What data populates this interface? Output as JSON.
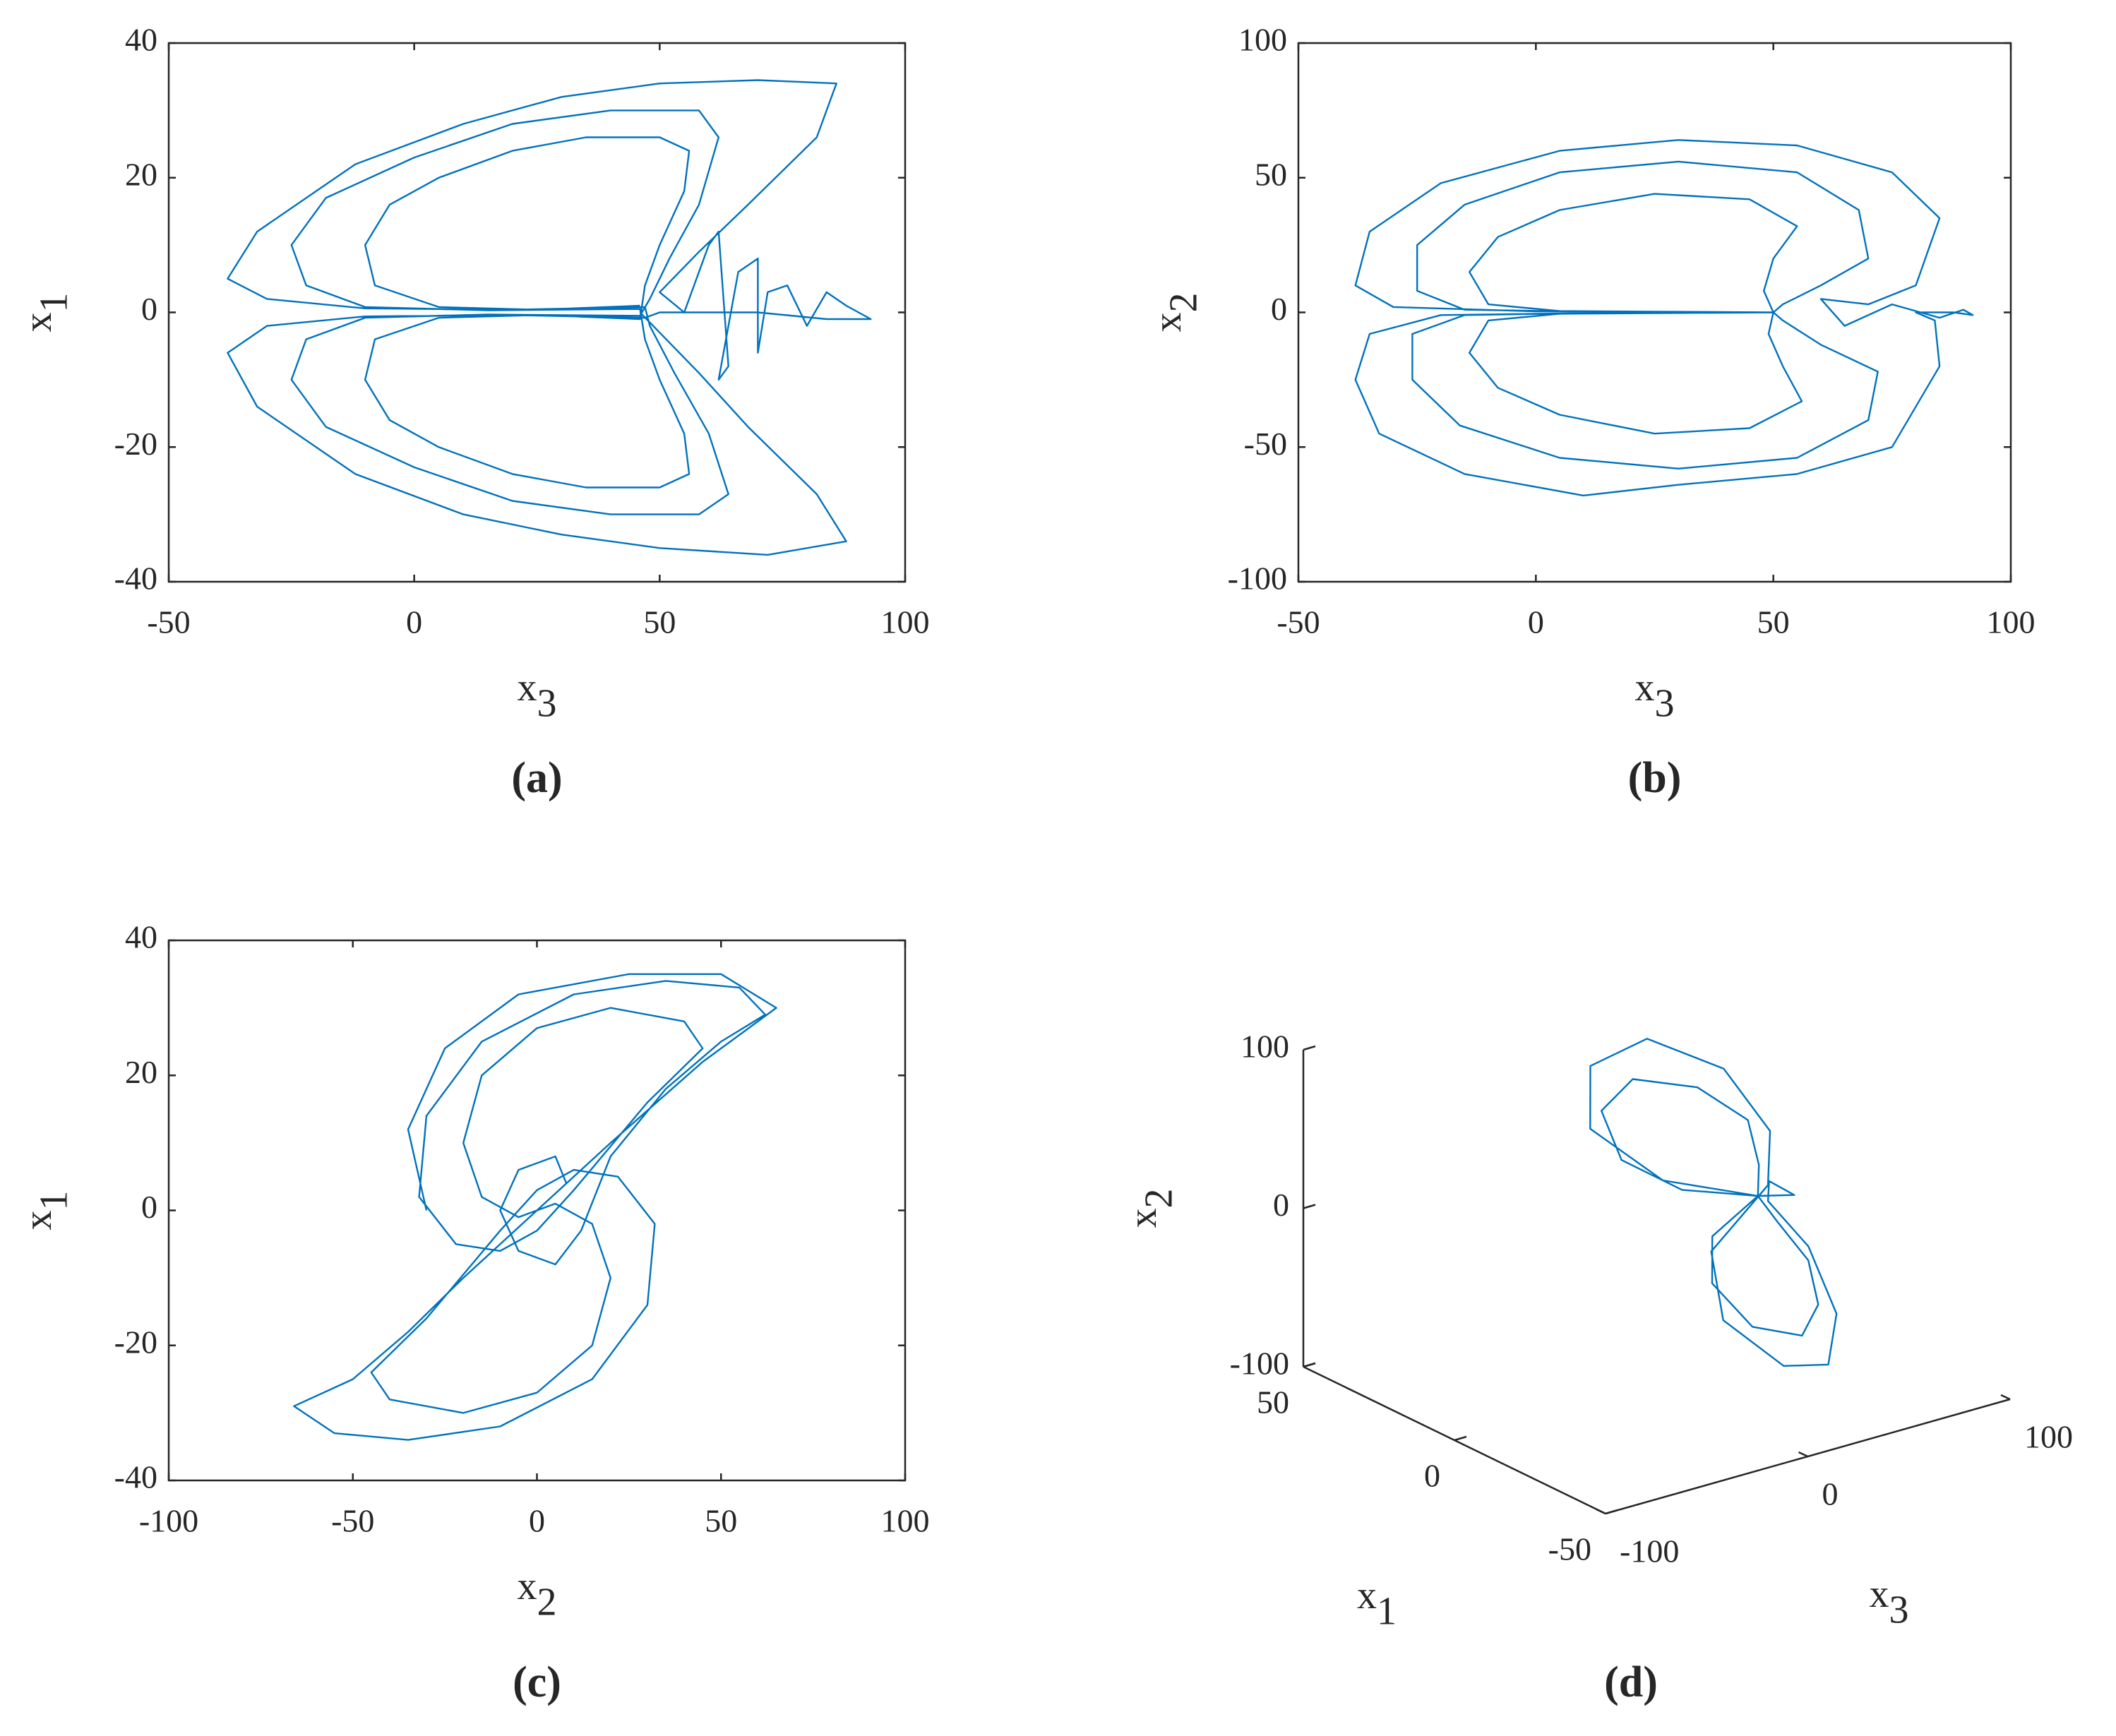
{
  "chart_data": [
    {
      "type": "line",
      "caption": "(a)",
      "xlabel": {
        "text": "x",
        "sub": "3"
      },
      "ylabel": {
        "text": "x",
        "sub": "1"
      },
      "xlim": [
        -50,
        100
      ],
      "xticks": [
        -50,
        0,
        50,
        100
      ],
      "ylim": [
        -40,
        40
      ],
      "yticks": [
        -40,
        -20,
        0,
        20,
        40
      ],
      "x": [
        46,
        25,
        5,
        -8,
        -10,
        -5,
        5,
        20,
        35,
        50,
        56,
        55,
        50,
        47,
        46,
        25,
        5,
        -8,
        -10,
        -5,
        5,
        20,
        35,
        50,
        56,
        55,
        50,
        47,
        46,
        15,
        -10,
        -22,
        -25,
        -18,
        0,
        20,
        40,
        58,
        62,
        58,
        52,
        48,
        46,
        15,
        -10,
        -22,
        -25,
        -18,
        0,
        20,
        40,
        58,
        64,
        60,
        53,
        48,
        47,
        20,
        -10,
        -30,
        -38,
        -32,
        -12,
        10,
        30,
        50,
        70,
        86,
        82,
        68,
        58,
        50,
        55,
        60,
        62,
        64,
        62,
        66,
        70,
        70,
        72,
        76,
        80,
        84,
        88,
        93,
        84,
        70,
        50,
        47,
        20,
        -10,
        -30,
        -38,
        -32,
        -12,
        10,
        30,
        50,
        72,
        88,
        82,
        68,
        58,
        50,
        46
      ],
      "series": [
        {
          "color": "#0072bd",
          "values": [
            1,
            0.4,
            0.8,
            4,
            10,
            16,
            20,
            24,
            26,
            26,
            24,
            18,
            10,
            4,
            -1,
            -0.4,
            -0.8,
            -4,
            -10,
            -16,
            -20,
            -24,
            -26,
            -26,
            -24,
            -18,
            -10,
            -4,
            0.5,
            0.3,
            0.8,
            4,
            10,
            17,
            23,
            28,
            30,
            30,
            26,
            16,
            8,
            2,
            -0.5,
            -0.3,
            -0.8,
            -4,
            -10,
            -17,
            -23,
            -28,
            -30,
            -30,
            -27,
            -18,
            -9,
            -2,
            0.8,
            0.4,
            0.6,
            2,
            5,
            12,
            22,
            28,
            32,
            34,
            34.5,
            34,
            26,
            16,
            9,
            3,
            0,
            10,
            12,
            -8,
            -10,
            6,
            8,
            -6,
            3,
            4,
            -2,
            3,
            1,
            -1,
            -1,
            0,
            0,
            -0.8,
            -0.4,
            -0.6,
            -2,
            -6,
            -14,
            -24,
            -30,
            -33,
            -35,
            -36,
            -34,
            -27,
            -17,
            -9,
            -3,
            0
          ]
        }
      ]
    },
    {
      "type": "line",
      "caption": "(b)",
      "xlabel": {
        "text": "x",
        "sub": "3"
      },
      "ylabel": {
        "text": "x",
        "sub": "2"
      },
      "xlim": [
        -50,
        100
      ],
      "xticks": [
        -50,
        0,
        50,
        100
      ],
      "ylim": [
        -100,
        100
      ],
      "yticks": [
        -100,
        -50,
        0,
        50,
        100
      ],
      "x": [
        50,
        25,
        5,
        -10,
        -14,
        -8,
        5,
        25,
        45,
        55,
        50,
        48,
        50,
        25,
        5,
        -10,
        -14,
        -8,
        5,
        25,
        45,
        56,
        52,
        49,
        50,
        10,
        -15,
        -25,
        -25,
        -15,
        5,
        30,
        55,
        68,
        70,
        60,
        52,
        50,
        10,
        -15,
        -26,
        -26,
        -16,
        5,
        30,
        55,
        70,
        72,
        60,
        52,
        50,
        0,
        -30,
        -38,
        -35,
        -20,
        5,
        30,
        55,
        75,
        85,
        80,
        70,
        60,
        65,
        75,
        85,
        90,
        92,
        88,
        80,
        84,
        85,
        75,
        55,
        30,
        10,
        -15,
        -33,
        -38,
        -35,
        -20,
        10,
        50
      ],
      "series": [
        {
          "color": "#0072bd",
          "values": [
            0,
            0.3,
            0.5,
            3,
            15,
            28,
            38,
            44,
            42,
            32,
            20,
            8,
            0,
            -0.3,
            -0.5,
            -3,
            -15,
            -28,
            -38,
            -45,
            -43,
            -33,
            -20,
            -8,
            0,
            0.3,
            1,
            8,
            25,
            40,
            52,
            56,
            52,
            38,
            20,
            10,
            3,
            0,
            -0.3,
            -1,
            -8,
            -25,
            -42,
            -54,
            -58,
            -54,
            -40,
            -22,
            -12,
            -3,
            0,
            0.4,
            2,
            10,
            30,
            48,
            60,
            64,
            62,
            52,
            35,
            10,
            3,
            5,
            -5,
            3,
            -2,
            1,
            -1,
            0,
            0,
            -3,
            -20,
            -50,
            -60,
            -64,
            -68,
            -60,
            -45,
            -25,
            -8,
            -1,
            -0.3,
            0
          ]
        }
      ]
    },
    {
      "type": "line",
      "caption": "(c)",
      "xlabel": {
        "text": "x",
        "sub": "2"
      },
      "ylabel": {
        "text": "x",
        "sub": "1"
      },
      "xlim": [
        -100,
        100
      ],
      "xticks": [
        -100,
        -50,
        0,
        50,
        100
      ],
      "ylim": [
        -40,
        40
      ],
      "yticks": [
        -40,
        -20,
        0,
        20,
        40
      ],
      "x": [
        0,
        8,
        5,
        -5,
        -10,
        -5,
        5,
        12,
        20,
        35,
        50,
        62,
        55,
        35,
        10,
        -15,
        -30,
        -32,
        -22,
        -10,
        0,
        10,
        30,
        45,
        40,
        20,
        0,
        -15,
        -20,
        -15,
        -5,
        0,
        -8,
        -20,
        -35,
        -50,
        -66,
        -55,
        -35,
        -10,
        15,
        30,
        32,
        22,
        10,
        0,
        -10,
        -30,
        -45,
        -40,
        -20,
        0,
        15,
        20,
        15,
        5,
        0,
        20,
        45,
        65,
        50,
        25,
        -5,
        -25,
        -35,
        -30
      ],
      "series": [
        {
          "color": "#0072bd",
          "values": [
            0,
            4,
            8,
            6,
            0,
            -6,
            -8,
            -3,
            8,
            18,
            25,
            29,
            33,
            34,
            32,
            25,
            14,
            2,
            -5,
            -6,
            -3,
            3,
            16,
            24,
            28,
            30,
            27,
            20,
            10,
            2,
            -1,
            0,
            -4,
            -10,
            -18,
            -25,
            -29,
            -33,
            -34,
            -32,
            -25,
            -14,
            -2,
            5,
            6,
            3,
            -3,
            -16,
            -24,
            -28,
            -30,
            -27,
            -20,
            -10,
            -2,
            1,
            0,
            10,
            22,
            30,
            35,
            35,
            32,
            24,
            12,
            0
          ]
        }
      ]
    },
    {
      "type": "line3d",
      "caption": "(d)",
      "xlabel": {
        "text": "x",
        "sub": "1"
      },
      "ylabel": {
        "text": "x",
        "sub": "3"
      },
      "zlabel": {
        "text": "x",
        "sub": "2"
      },
      "xlim": [
        -50,
        50
      ],
      "xticks": [
        -50,
        0,
        50
      ],
      "ylim": [
        -100,
        100
      ],
      "yticks": [
        -100,
        0,
        100
      ],
      "zlim": [
        -100,
        100
      ],
      "zticks": [
        -100,
        0,
        100
      ],
      "x": [
        0,
        5,
        15,
        25,
        28,
        20,
        10,
        3,
        0,
        -5,
        -15,
        -25,
        -28,
        -20,
        -10,
        -3,
        0,
        8,
        22,
        32,
        30,
        18,
        6,
        0,
        -8,
        -22,
        -32,
        -30,
        -18,
        -6,
        0,
        3,
        -2,
        0
      ],
      "y": [
        50,
        20,
        5,
        10,
        30,
        50,
        60,
        55,
        50,
        20,
        5,
        10,
        30,
        50,
        60,
        55,
        50,
        15,
        0,
        15,
        40,
        60,
        65,
        55,
        15,
        0,
        15,
        40,
        62,
        66,
        55,
        60,
        65,
        50
      ],
      "series": [
        {
          "color": "#0072bd",
          "values": [
            0,
            10,
            25,
            45,
            55,
            50,
            35,
            15,
            0,
            -10,
            -25,
            -45,
            -55,
            -50,
            -35,
            -15,
            0,
            15,
            40,
            65,
            75,
            60,
            30,
            5,
            -15,
            -40,
            -65,
            -75,
            -62,
            -32,
            -5,
            3,
            -3,
            0
          ]
        }
      ]
    }
  ]
}
